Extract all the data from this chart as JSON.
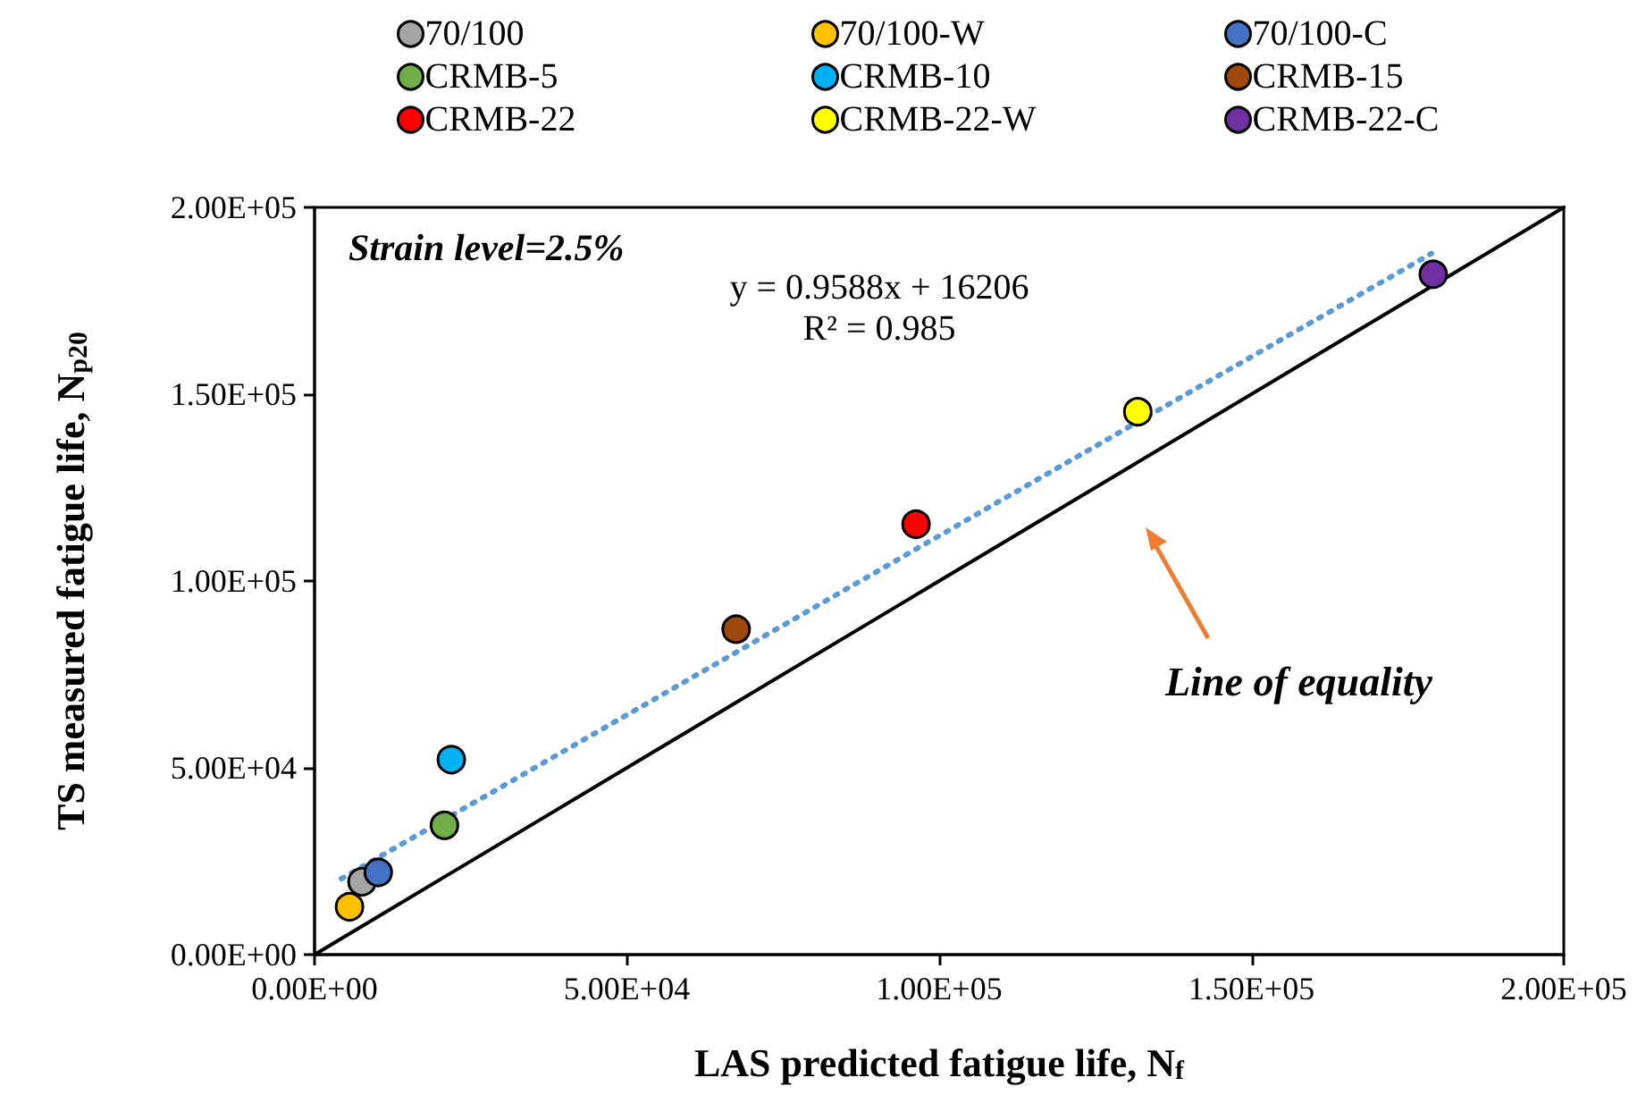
{
  "chart_data": {
    "type": "scatter",
    "xlabel": "LAS predicted fatigue life, N$_{f}$",
    "ylabel": "TS measured fatigue life, N$_{p20}$",
    "annotations": [
      "Strain level=2.5%",
      "y = 0.9588x + 16206",
      "R² = 0.985",
      "Line of equality"
    ],
    "xlim": [
      0,
      200000
    ],
    "ylim": [
      0,
      200000
    ],
    "xticks": [
      {
        "value": 0,
        "label": "0.00E+00"
      },
      {
        "value": 50000,
        "label": "5.00E+04"
      },
      {
        "value": 100000,
        "label": "1.00E+05"
      },
      {
        "value": 150000,
        "label": "1.50E+05"
      },
      {
        "value": 200000,
        "label": "2.00E+05"
      }
    ],
    "yticks": [
      {
        "value": 0,
        "label": "0.00E+00"
      },
      {
        "value": 50000,
        "label": "5.00E+04"
      },
      {
        "value": 100000,
        "label": "1.00E+05"
      },
      {
        "value": 150000,
        "label": "1.50E+05"
      },
      {
        "value": 200000,
        "label": "2.00E+05"
      }
    ],
    "grid": false,
    "legend": "top",
    "marker": "circle",
    "series": [
      {
        "name": "70/100",
        "color": "#a5a5a5",
        "x": [
          7600
        ],
        "values": [
          19500
        ]
      },
      {
        "name": "70/100-W",
        "color": "#ffc000",
        "x": [
          5600
        ],
        "values": [
          12800
        ]
      },
      {
        "name": "70/100-C",
        "color": "#4472c4",
        "x": [
          10200
        ],
        "values": [
          22000
        ]
      },
      {
        "name": "CRMB-5",
        "color": "#70ad47",
        "x": [
          20800
        ],
        "values": [
          34600
        ]
      },
      {
        "name": "CRMB-10",
        "color": "#00b0f0",
        "x": [
          21900
        ],
        "values": [
          52200
        ]
      },
      {
        "name": "CRMB-15",
        "color": "#9e480e",
        "x": [
          67500
        ],
        "values": [
          87100
        ]
      },
      {
        "name": "CRMB-22",
        "color": "#ff0000",
        "x": [
          96300
        ],
        "values": [
          115200
        ]
      },
      {
        "name": "CRMB-22-W",
        "color": "#ffff00",
        "x": [
          131800
        ],
        "values": [
          145300
        ]
      },
      {
        "name": "CRMB-22-C",
        "color": "#7030a0",
        "x": [
          179100
        ],
        "values": [
          182100
        ]
      },
      {
        "type": "line",
        "color": "#5b9bd5",
        "line_style": "dotted",
        "marker": "none",
        "x": [
          4300,
          178800
        ],
        "values": [
          20329,
          187642
        ]
      },
      {
        "type": "line",
        "color": "#000000",
        "line_style": "solid",
        "marker": "none",
        "x": [
          0,
          200000
        ],
        "values": [
          0,
          200000
        ]
      }
    ]
  }
}
